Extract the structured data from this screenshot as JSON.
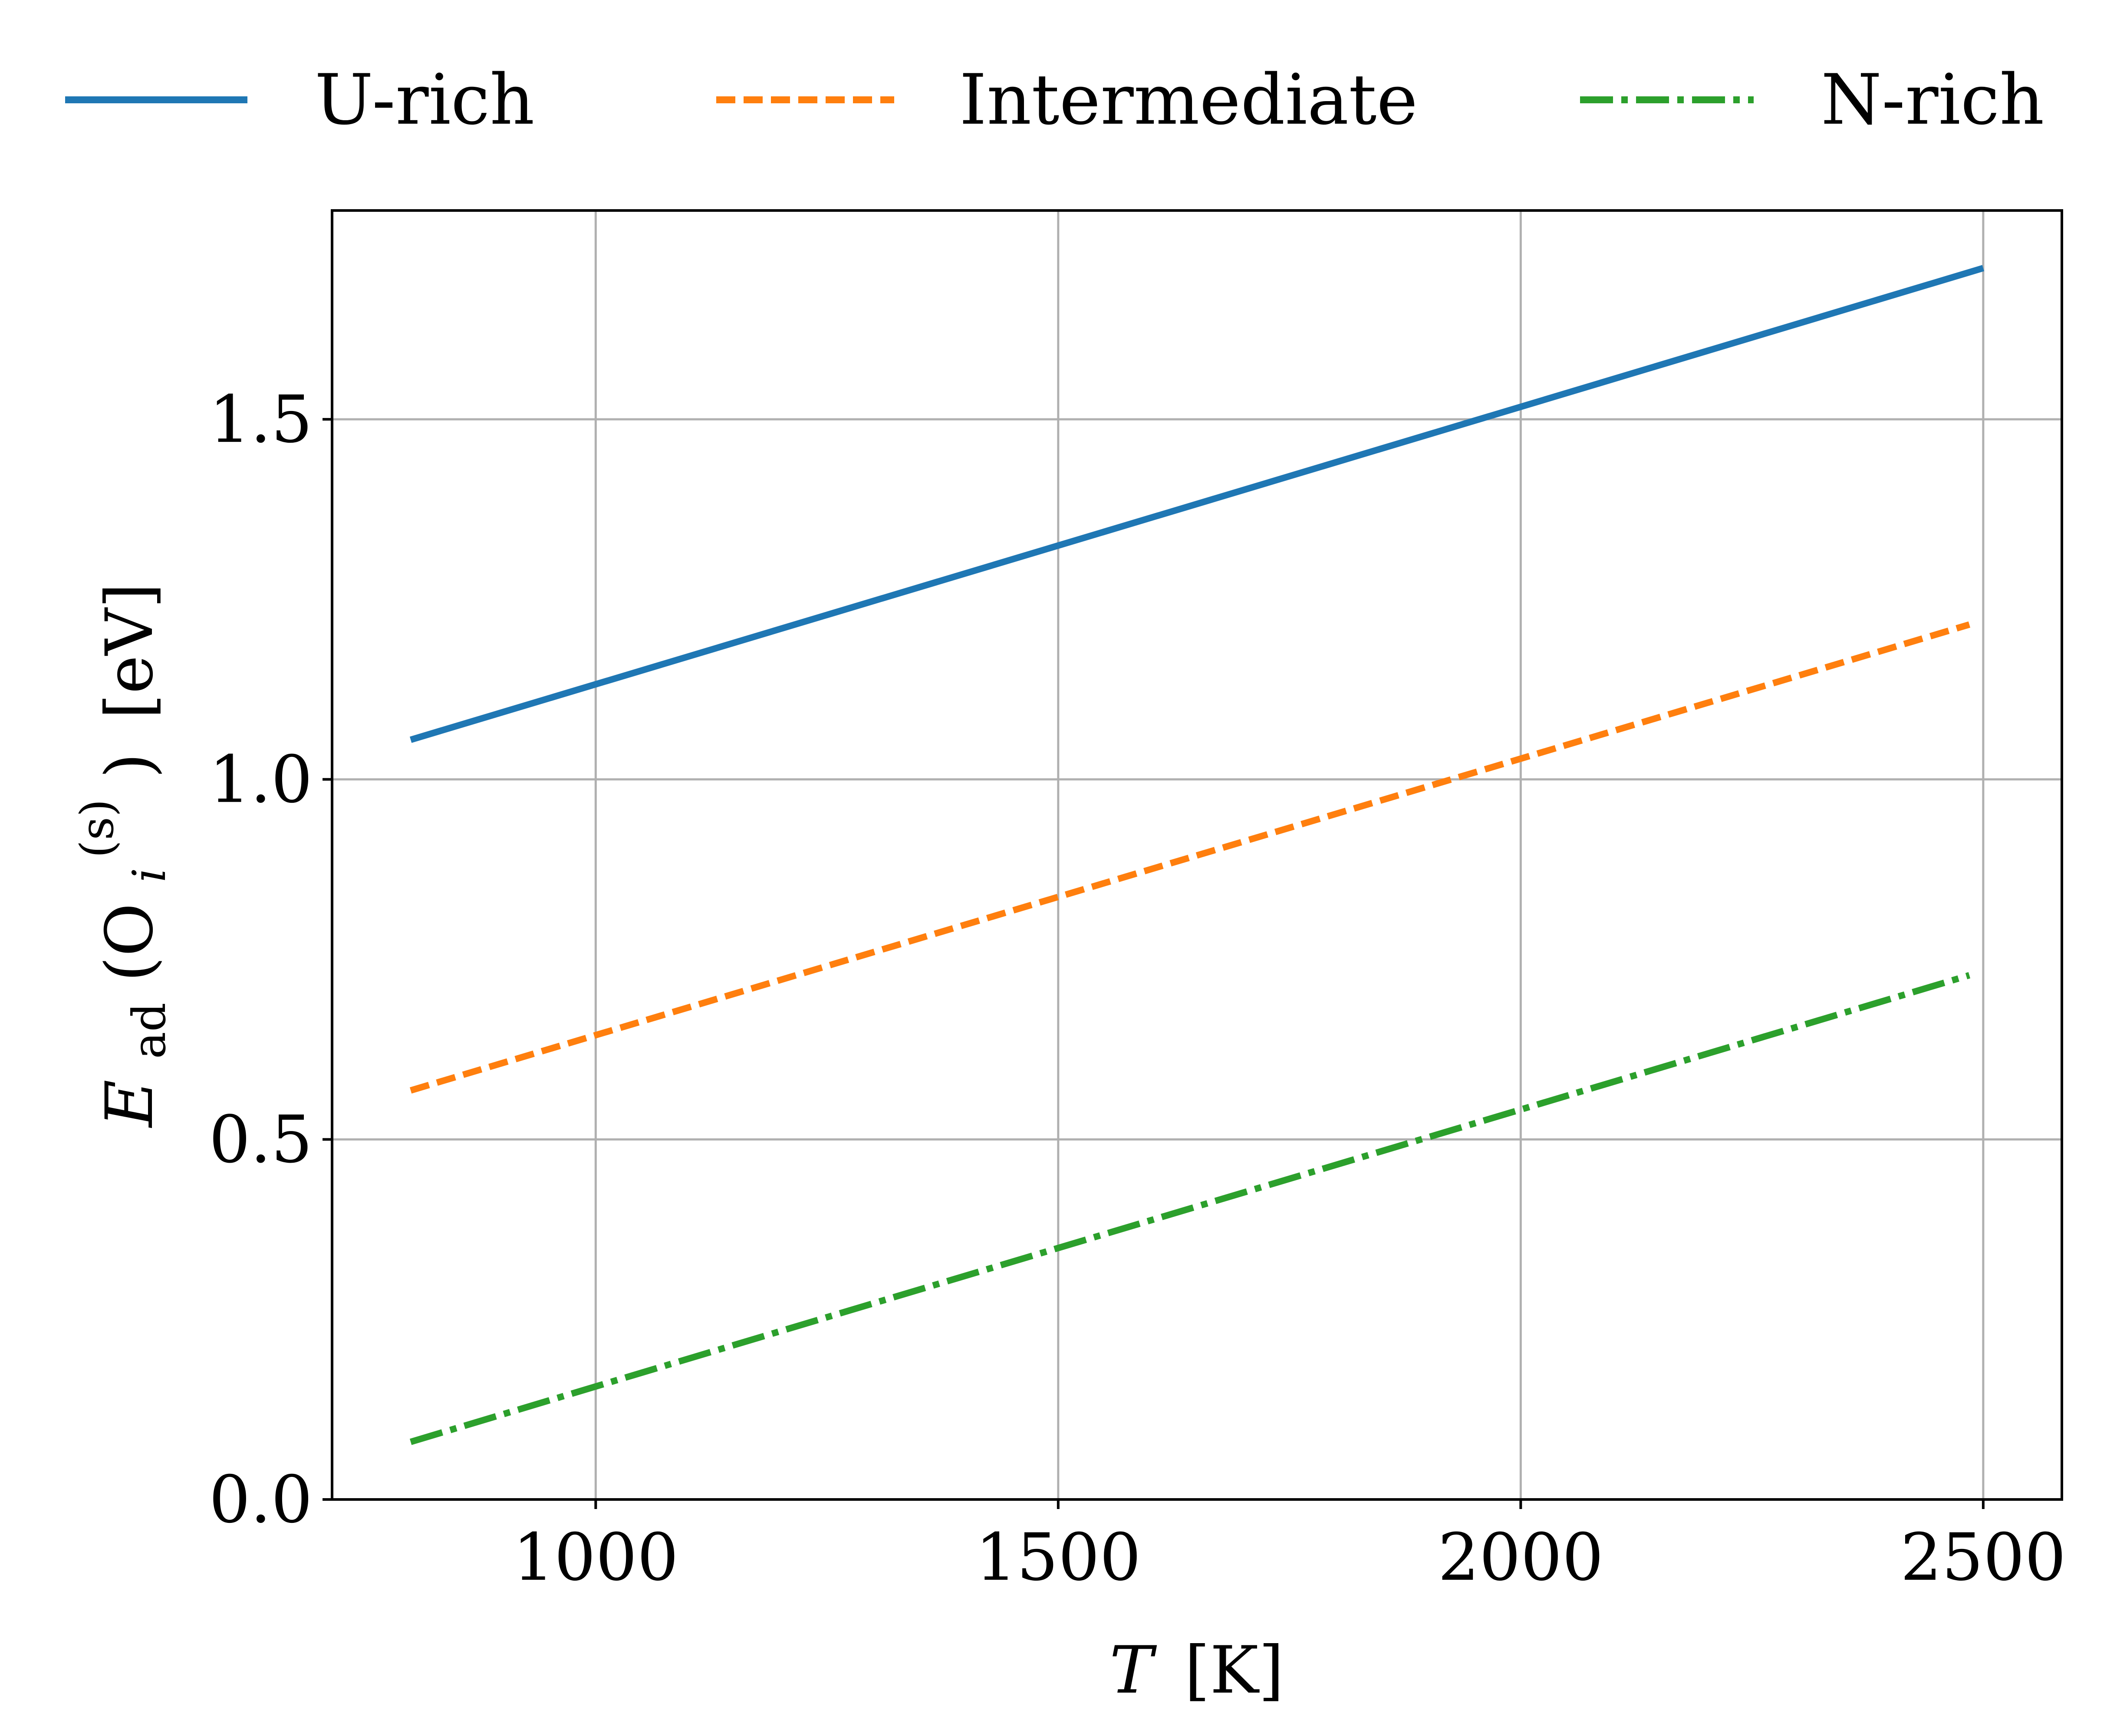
{
  "chart_data": {
    "type": "line",
    "title": "",
    "xlabel": {
      "italic_symbol": "T",
      "unit": "[K]"
    },
    "ylabel": {
      "italic_symbol": "E",
      "subscript": "ad",
      "open_paren": "(O",
      "species_sub": "i",
      "species_sup": "(s)",
      "close_paren": ")",
      "unit": "[eV]"
    },
    "xlim": [
      715,
      2585
    ],
    "ylim": [
      0,
      1.79
    ],
    "grid": true,
    "legend_position": "top (outside plot, single row)",
    "x_ticks": [
      1000,
      1500,
      2000,
      2500
    ],
    "x_tick_labels": [
      "1000",
      "1500",
      "2000",
      "2500"
    ],
    "y_ticks": [
      0.0,
      0.5,
      1.0,
      1.5
    ],
    "y_tick_labels": [
      "0.0",
      "0.5",
      "1.0",
      "1.5"
    ],
    "series": [
      {
        "name": "U-rich",
        "color": "#1f77b4",
        "linestyle": "solid",
        "x": [
          800,
          2500
        ],
        "y": [
          1.055,
          1.71
        ]
      },
      {
        "name": "Intermediate",
        "color": "#ff7f0e",
        "linestyle": "dashed",
        "x": [
          800,
          2485
        ],
        "y": [
          0.568,
          1.215
        ]
      },
      {
        "name": "N-rich",
        "color": "#2ca02c",
        "linestyle": "dashdot",
        "x": [
          800,
          2485
        ],
        "y": [
          0.08,
          0.728
        ]
      }
    ]
  }
}
